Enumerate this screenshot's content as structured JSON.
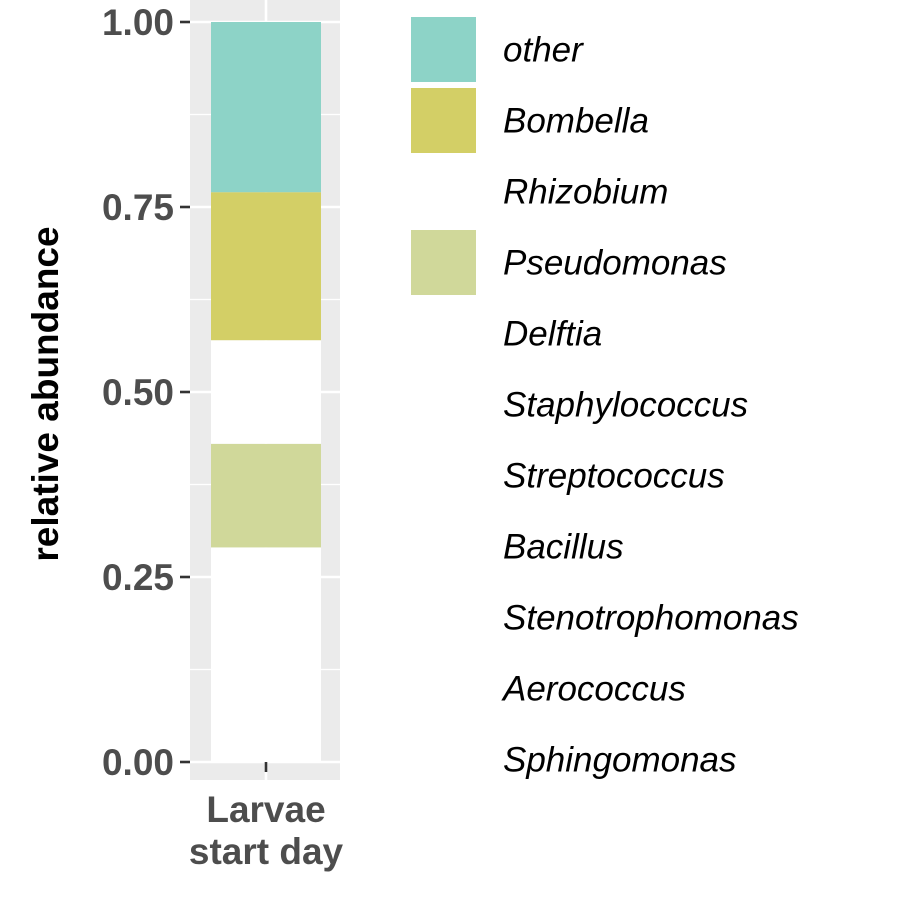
{
  "chart_data": {
    "type": "bar",
    "stacked": true,
    "categories": [
      "Larvae\nstart day"
    ],
    "ylabel": "relative abundance",
    "xlabel": "",
    "ylim": [
      0,
      1
    ],
    "yticks": [
      "0.00",
      "0.25",
      "0.50",
      "0.75",
      "1.00"
    ],
    "grid": true,
    "legend_position": "right",
    "series": [
      {
        "name": "other",
        "color": "#8dd3c7",
        "values": [
          0.23
        ]
      },
      {
        "name": "Bombella",
        "color": "#d3cf66",
        "values": [
          0.2
        ]
      },
      {
        "name": "Rhizobium",
        "color": "#ffffff",
        "values": [
          0.14
        ]
      },
      {
        "name": "Pseudomonas",
        "color": "#d0d89a",
        "values": [
          0.14
        ]
      },
      {
        "name": "Delftia",
        "color": "#ffffff",
        "values": [
          0
        ]
      },
      {
        "name": "Staphylococcus",
        "color": "#ffffff",
        "values": [
          0
        ]
      },
      {
        "name": "Streptococcus",
        "color": "#ffffff",
        "values": [
          0
        ]
      },
      {
        "name": "Bacillus",
        "color": "#ffffff",
        "values": [
          0
        ]
      },
      {
        "name": "Stenotrophomonas",
        "color": "#ffffff",
        "values": [
          0
        ]
      },
      {
        "name": "Aerococcus",
        "color": "#ffffff",
        "values": [
          0
        ]
      },
      {
        "name": "Sphingomonas",
        "color": "#ffffff",
        "values": [
          0.29
        ]
      }
    ],
    "colors": {
      "panel": "#ebebeb",
      "grid": "#ffffff",
      "tick_text": "#4d4d4d"
    }
  }
}
